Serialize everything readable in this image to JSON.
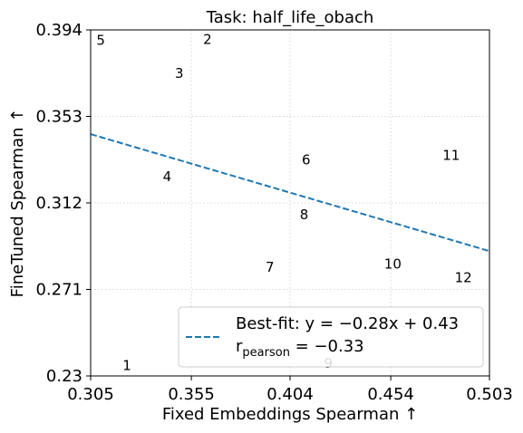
{
  "chart_data": {
    "type": "scatter",
    "title": "Task: half_life_obach",
    "xlabel": "Fixed Embeddings Spearman ↑",
    "ylabel": "FineTuned Spearman ↑",
    "xlim": [
      0.305,
      0.503
    ],
    "ylim": [
      0.23,
      0.394
    ],
    "xticks": [
      "0.305",
      "0.355",
      "0.404",
      "0.454",
      "0.503"
    ],
    "yticks": [
      "0.23",
      "0.271",
      "0.312",
      "0.353",
      "0.394"
    ],
    "grid": true,
    "points": [
      {
        "label": "1",
        "x": 0.323,
        "y": 0.235
      },
      {
        "label": "2",
        "x": 0.363,
        "y": 0.3895
      },
      {
        "label": "3",
        "x": 0.349,
        "y": 0.3735
      },
      {
        "label": "4",
        "x": 0.343,
        "y": 0.3245
      },
      {
        "label": "5",
        "x": 0.31,
        "y": 0.389
      },
      {
        "label": "6",
        "x": 0.412,
        "y": 0.3325
      },
      {
        "label": "7",
        "x": 0.394,
        "y": 0.2815
      },
      {
        "label": "8",
        "x": 0.411,
        "y": 0.3065
      },
      {
        "label": "9",
        "x": 0.423,
        "y": 0.236
      },
      {
        "label": "10",
        "x": 0.455,
        "y": 0.283
      },
      {
        "label": "11",
        "x": 0.484,
        "y": 0.3345
      },
      {
        "label": "12",
        "x": 0.49,
        "y": 0.2765
      }
    ],
    "fit": {
      "slope": -0.28,
      "intercept": 0.43
    },
    "legend": {
      "placement": "lower-right",
      "fit_label": "Best-fit: y = −0.28x + 0.43",
      "pearson_label": "r",
      "pearson_sub": "pearson",
      "pearson_value": " = −0.33"
    }
  }
}
